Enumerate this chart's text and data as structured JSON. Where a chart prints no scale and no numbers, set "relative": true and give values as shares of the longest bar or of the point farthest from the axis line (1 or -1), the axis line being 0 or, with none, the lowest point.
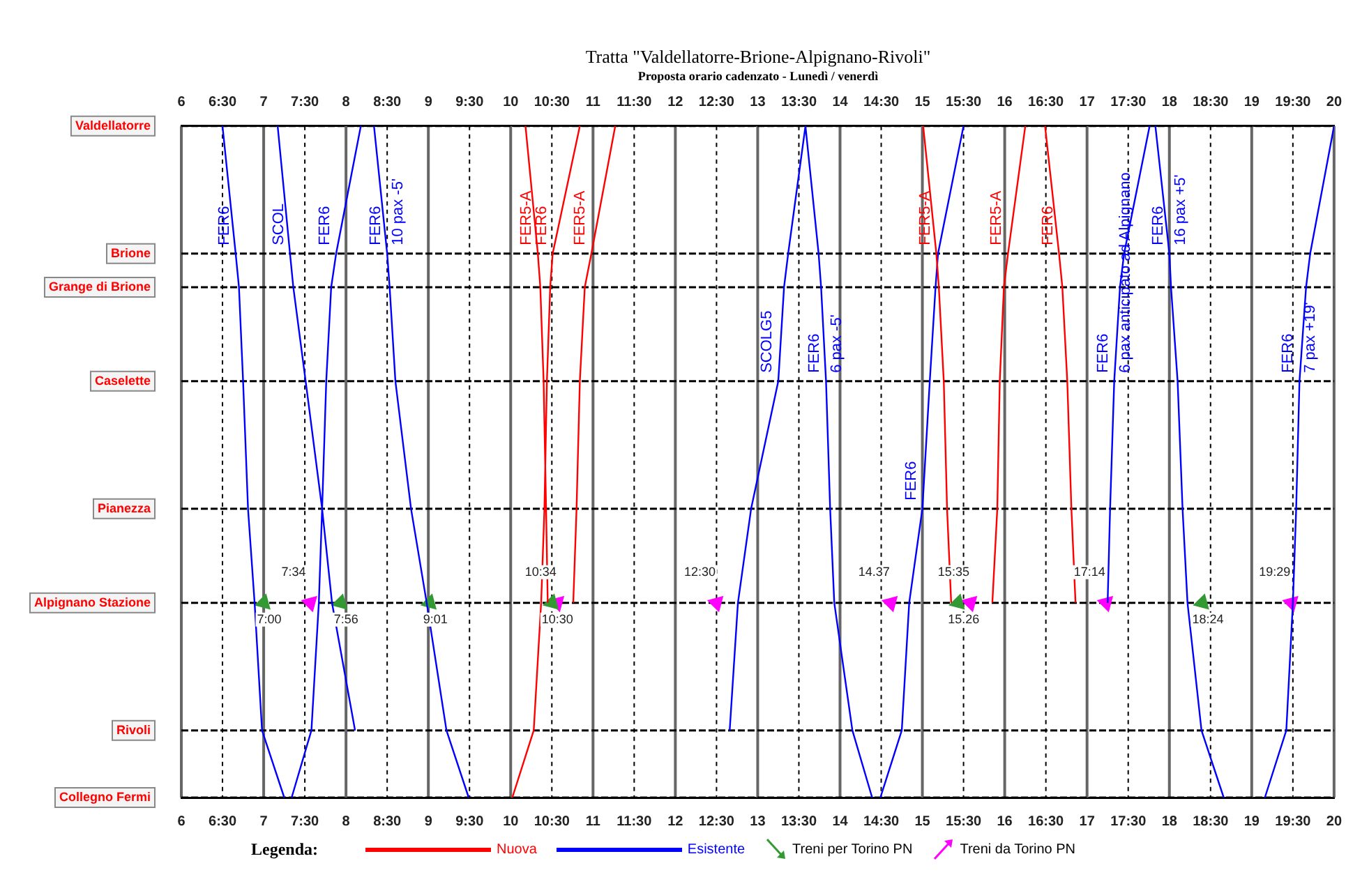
{
  "chart_data": {
    "type": "line",
    "title": "Tratta \"Valdellatorre-Brione-Alpignano-Rivoli\"",
    "subtitle": "Proposta orario cadenzato - Lunedì / venerdì",
    "legend_title": "Legenda:",
    "legend": "bottom",
    "grid": "x",
    "relative": true,
    "xlim": [
      6,
      20
    ],
    "x2lim": [
      6,
      20
    ],
    "xticks": [
      6,
      {
        "value": 6.5,
        "label": "6:30"
      },
      7,
      {
        "value": 7.5,
        "label": "7:30"
      },
      8,
      {
        "value": 8.5,
        "label": "8:30"
      },
      9,
      {
        "value": 9.5,
        "label": "9:30"
      },
      10,
      {
        "value": 10.5,
        "label": "10:30"
      },
      11,
      {
        "value": 11.5,
        "label": "11:30"
      },
      12,
      {
        "value": 12.5,
        "label": "12:30"
      },
      13,
      {
        "value": 13.5,
        "label": "13:30"
      },
      14,
      {
        "value": 14.5,
        "label": "14:30"
      },
      15,
      {
        "value": 15.5,
        "label": "15:30"
      },
      16,
      {
        "value": 16.5,
        "label": "16:30"
      },
      17,
      {
        "value": 17.5,
        "label": "17:30"
      },
      18,
      {
        "value": 18.5,
        "label": "18:30"
      },
      19,
      {
        "value": 19.5,
        "label": "19:30"
      },
      20
    ],
    "x2ticks": [
      6,
      {
        "value": 6.5,
        "label": "6:30"
      },
      7,
      {
        "value": 7.5,
        "label": "7:30"
      },
      8,
      {
        "value": 8.5,
        "label": "8:30"
      },
      9,
      {
        "value": 9.5,
        "label": "9:30"
      },
      10,
      {
        "value": 10.5,
        "label": "10:30"
      },
      11,
      {
        "value": 11.5,
        "label": "11:30"
      },
      12,
      {
        "value": 12.5,
        "label": "12:30"
      },
      13,
      {
        "value": 13.5,
        "label": "13:30"
      },
      14,
      {
        "value": 14.5,
        "label": "14:30"
      },
      15,
      {
        "value": 15.5,
        "label": "15:30"
      },
      16,
      {
        "value": 16.5,
        "label": "16:30"
      },
      17,
      {
        "value": 17.5,
        "label": "17:30"
      },
      18,
      {
        "value": 18.5,
        "label": "18:30"
      },
      19,
      {
        "value": 19.5,
        "label": "19:30"
      },
      20
    ],
    "ref_lines": [
      {
        "axis": "y",
        "value": 1,
        "label": "Valdellatorre"
      },
      {
        "axis": "y",
        "value": 0.81,
        "label": "Brione"
      },
      {
        "axis": "y",
        "value": 0.76,
        "label": "Grange di Brione"
      },
      {
        "axis": "y",
        "value": 0.62,
        "label": "Caselette"
      },
      {
        "axis": "y",
        "value": 0.43,
        "label": "Pianezza"
      },
      {
        "axis": "y",
        "value": 0.29,
        "label": "Alpignano Stazione"
      },
      {
        "axis": "y",
        "value": 0.1,
        "label": "Rivoli"
      },
      {
        "axis": "y",
        "value": 0,
        "label": "Collegno Fermi"
      }
    ],
    "series": [
      {
        "name": "Nuova",
        "color": "#ff0000",
        "x": [
          10.18,
          10.33,
          10.36,
          10.4,
          10.43,
          10.45,
          null,
          10.02,
          10.28,
          10.37,
          10.41,
          10.44,
          10.48,
          10.51,
          10.84,
          null,
          10.76,
          10.8,
          10.84,
          10.9,
          10.98,
          11.27,
          null,
          15.01,
          15.17,
          15.2,
          15.26,
          15.3,
          15.35,
          null,
          15.85,
          15.91,
          15.94,
          15.99,
          16.04,
          16.25,
          null,
          16.49,
          16.66,
          16.7,
          16.76,
          16.81,
          16.86
        ],
        "values": [
          1,
          0.81,
          0.76,
          0.62,
          0.43,
          0.29,
          null,
          0,
          0.1,
          0.29,
          0.43,
          0.62,
          0.76,
          0.81,
          1,
          null,
          0.29,
          0.43,
          0.62,
          0.76,
          0.81,
          1,
          null,
          1,
          0.81,
          0.76,
          0.62,
          0.43,
          0.29,
          null,
          0.29,
          0.43,
          0.62,
          0.76,
          0.81,
          1,
          null,
          1,
          0.81,
          0.76,
          0.62,
          0.43,
          0.29
        ]
      },
      {
        "name": "Esistente",
        "color": "#0000ff",
        "x": [
          6.5,
          6.66,
          6.7,
          6.75,
          6.81,
          6.89,
          6.98,
          7.25,
          null,
          7.34,
          7.58,
          7.67,
          7.71,
          7.76,
          7.82,
          7.88,
          8.18,
          null,
          7.17,
          7.32,
          7.36,
          7.51,
          7.71,
          7.83,
          8.11,
          null,
          8.34,
          8.5,
          8.53,
          8.6,
          8.79,
          8.98,
          9.22,
          9.49,
          null,
          12.66,
          12.76,
          12.92,
          13.25,
          13.32,
          13.37,
          13.58,
          null,
          13.58,
          13.74,
          13.77,
          13.83,
          13.88,
          13.93,
          14.15,
          14.39,
          null,
          14.49,
          14.75,
          14.84,
          15.0,
          15.09,
          15.16,
          15.19,
          15.5,
          null,
          17.25,
          17.28,
          17.33,
          17.4,
          17.45,
          17.76,
          null,
          17.83,
          18.0,
          18.02,
          18.1,
          18.16,
          18.22,
          18.39,
          18.66,
          null,
          19.16,
          19.42,
          19.5,
          19.54,
          19.58,
          19.66,
          19.71,
          20.0
        ],
        "values": [
          1,
          0.81,
          0.76,
          0.62,
          0.43,
          0.29,
          0.1,
          0,
          null,
          0,
          0.1,
          0.29,
          0.43,
          0.62,
          0.76,
          0.81,
          1,
          null,
          1,
          0.81,
          0.76,
          0.62,
          0.43,
          0.29,
          0.1,
          null,
          1,
          0.81,
          0.76,
          0.62,
          0.43,
          0.29,
          0.1,
          0,
          null,
          0.1,
          0.29,
          0.43,
          0.62,
          0.76,
          0.81,
          1,
          null,
          1,
          0.81,
          0.76,
          0.62,
          0.43,
          0.29,
          0.1,
          0,
          null,
          0,
          0.1,
          0.29,
          0.43,
          0.62,
          0.76,
          0.81,
          1,
          null,
          0.29,
          0.43,
          0.62,
          0.76,
          0.81,
          1,
          null,
          1,
          0.81,
          0.76,
          0.62,
          0.43,
          0.29,
          0.1,
          0,
          null,
          0,
          0.1,
          0.29,
          0.43,
          0.62,
          0.76,
          0.81,
          1
        ]
      },
      {
        "name": "Treni per Torino PN",
        "type": "scatter",
        "color": "#339933",
        "x": [
          7.0,
          7.933,
          9.017,
          10.5,
          15.433,
          18.4
        ],
        "values": [
          0.29,
          0.29,
          0.29,
          0.29,
          0.29,
          0.29
        ]
      },
      {
        "name": "Treni da Torino PN",
        "type": "scatter",
        "color": "#ff00ff",
        "x": [
          7.567,
          10.567,
          12.5,
          14.617,
          15.583,
          17.233,
          19.483
        ],
        "values": [
          0.29,
          0.29,
          0.29,
          0.29,
          0.29,
          0.29,
          0.29
        ]
      }
    ],
    "annotations": [
      {
        "text": "FER6",
        "x": 6.66,
        "y": 0.81
      },
      {
        "text": "SCOL",
        "x": 7.32,
        "y": 0.81
      },
      {
        "text": "FER6",
        "x": 7.88,
        "y": 0.81
      },
      {
        "text": "FER6",
        "x": 8.5,
        "y": 0.81
      },
      {
        "text": "10 pax -5'",
        "x": 8.5,
        "y": 0.81
      },
      {
        "text": "FER5-A",
        "x": 10.33,
        "y": 0.81
      },
      {
        "text": "FER6",
        "x": 10.51,
        "y": 0.81
      },
      {
        "text": "FER5-A",
        "x": 10.98,
        "y": 0.81
      },
      {
        "text": "SCOLG5",
        "x": 13.25,
        "y": 0.62
      },
      {
        "text": "FER6",
        "x": 13.83,
        "y": 0.62
      },
      {
        "text": "6 pax -5'",
        "x": 13.83,
        "y": 0.62
      },
      {
        "text": "FER6",
        "x": 15.0,
        "y": 0.43
      },
      {
        "text": "FER5-A",
        "x": 15.17,
        "y": 0.81
      },
      {
        "text": "FER5-A",
        "x": 16.04,
        "y": 0.81
      },
      {
        "text": "FER6",
        "x": 16.66,
        "y": 0.81
      },
      {
        "text": "FER6",
        "x": 17.33,
        "y": 0.62
      },
      {
        "text": "6 pax anticipato ad Alpignano",
        "x": 17.33,
        "y": 0.62
      },
      {
        "text": "FER6",
        "x": 18.0,
        "y": 0.81
      },
      {
        "text": "16 pax +5'",
        "x": 18.0,
        "y": 0.81
      },
      {
        "text": "FER6",
        "x": 19.58,
        "y": 0.62
      },
      {
        "text": "7 pax +19'",
        "x": 19.58,
        "y": 0.62
      },
      {
        "text": "7:00",
        "x": 7.0,
        "y": 0.29
      },
      {
        "text": "7:56",
        "x": 7.933,
        "y": 0.29
      },
      {
        "text": "9:01",
        "x": 9.017,
        "y": 0.29
      },
      {
        "text": "10:30",
        "x": 10.5,
        "y": 0.29
      },
      {
        "text": "15.26",
        "x": 15.433,
        "y": 0.29
      },
      {
        "text": "18:24",
        "x": 18.4,
        "y": 0.29
      },
      {
        "text": "7:34",
        "x": 7.567,
        "y": 0.29
      },
      {
        "text": "10:34",
        "x": 10.567,
        "y": 0.29
      },
      {
        "text": "12:30",
        "x": 12.5,
        "y": 0.29
      },
      {
        "text": "14.37",
        "x": 14.617,
        "y": 0.29
      },
      {
        "text": "15:35",
        "x": 15.583,
        "y": 0.29
      },
      {
        "text": "17:14",
        "x": 17.233,
        "y": 0.29
      },
      {
        "text": "19:29",
        "x": 19.483,
        "y": 0.29
      }
    ]
  }
}
